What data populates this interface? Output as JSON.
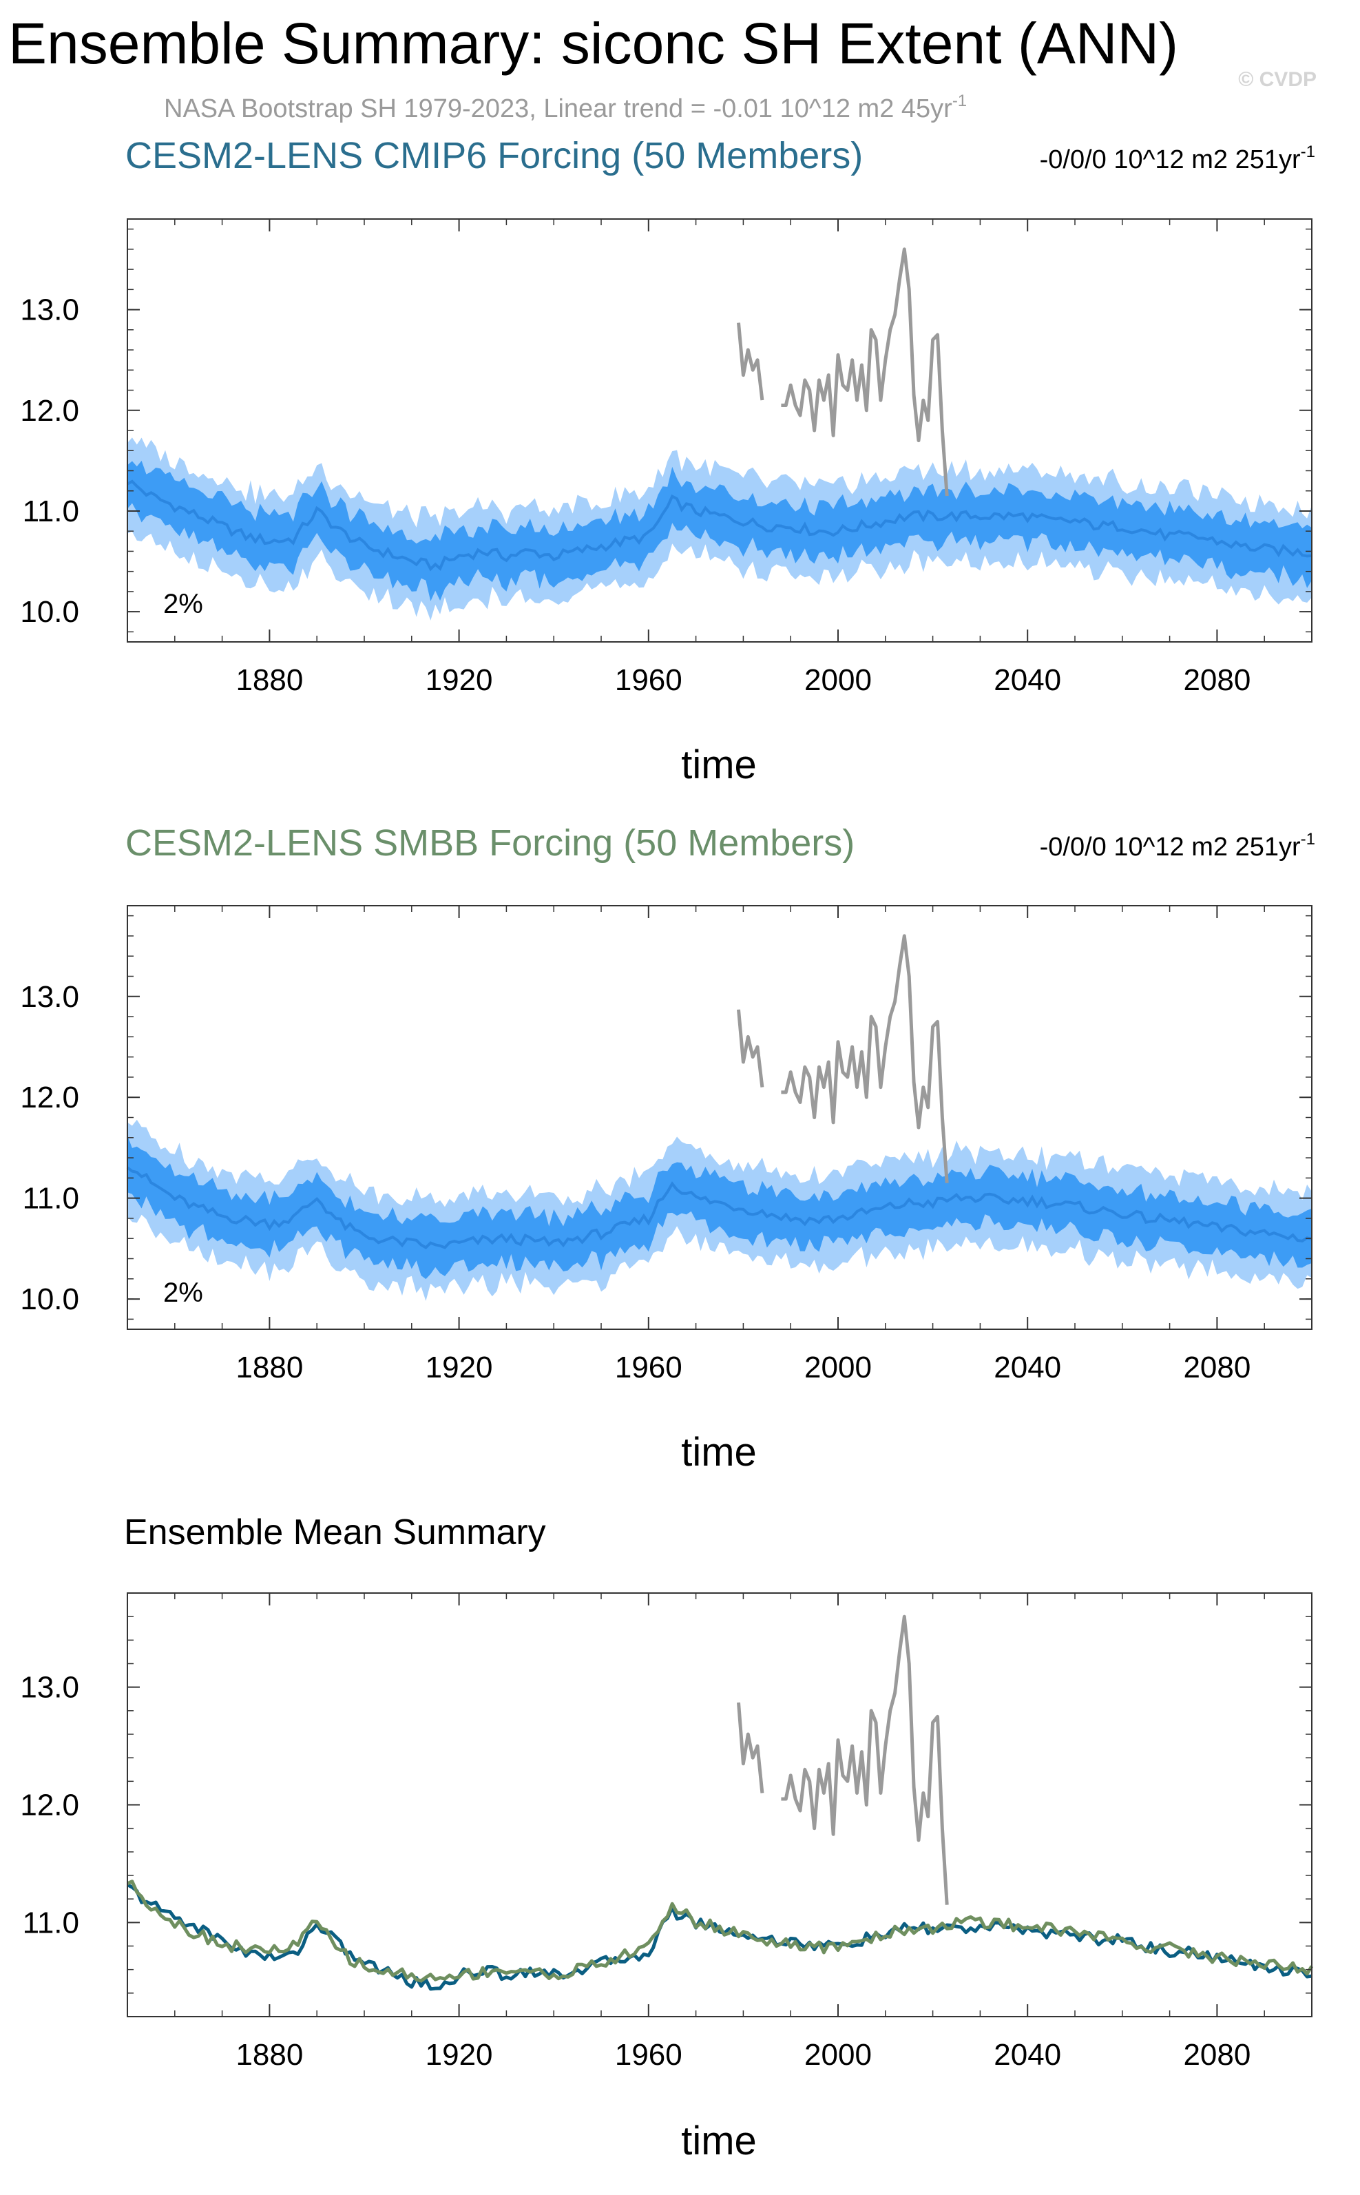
{
  "header": {
    "title": "Ensemble Summary: siconc SH Extent (ANN)",
    "obs_subtitle": "NASA Bootstrap SH 1979-2023, Linear trend = -0.01 10^12 m2 45yr",
    "obs_subtitle_sup": "-1",
    "watermark": "© CVDP"
  },
  "colors": {
    "band_outer": "#a6d0fb",
    "band_inner": "#3d9cf5",
    "mean_line": "#2b86e0",
    "obs_line": "#9a9a9a",
    "title_cmip6": "#2a6e8e",
    "title_smbb": "#6a8f6a",
    "mean_cmip6": "#0a5e82",
    "mean_smbb": "#6f8f5f"
  },
  "chart_data": [
    {
      "type": "area",
      "title": "CESM2-LENS CMIP6 Forcing (50 Members)",
      "trend_label": "-0/0/0 10^12 m2 251yr",
      "trend_sup": "-1",
      "xlabel": "time",
      "ylabel": "",
      "xlim": [
        1850,
        2100
      ],
      "ylim": [
        9.7,
        13.9
      ],
      "xticks": [
        1880,
        1920,
        1960,
        2000,
        2040,
        2080
      ],
      "yticks": [
        10.0,
        11.0,
        12.0,
        13.0
      ],
      "ytick_labels": [
        "10.0",
        "11.0",
        "12.0",
        "13.0"
      ],
      "xtick_labels": [
        "1880",
        "1920",
        "1960",
        "2000",
        "2040",
        "2080"
      ],
      "annotation": "2%",
      "ensemble_mean": {
        "name": "ensemble mean",
        "x": [
          1850,
          1855,
          1860,
          1865,
          1870,
          1875,
          1880,
          1885,
          1890,
          1895,
          1900,
          1905,
          1910,
          1915,
          1920,
          1925,
          1930,
          1935,
          1940,
          1945,
          1950,
          1955,
          1960,
          1965,
          1970,
          1975,
          1980,
          1985,
          1990,
          1995,
          2000,
          2005,
          2010,
          2015,
          2020,
          2025,
          2030,
          2035,
          2040,
          2045,
          2050,
          2055,
          2060,
          2065,
          2070,
          2075,
          2080,
          2085,
          2090,
          2095,
          2100
        ],
        "y": [
          11.3,
          11.15,
          11.05,
          10.95,
          10.85,
          10.75,
          10.7,
          10.72,
          11.0,
          10.8,
          10.65,
          10.58,
          10.5,
          10.45,
          10.55,
          10.6,
          10.55,
          10.6,
          10.55,
          10.6,
          10.65,
          10.7,
          10.75,
          11.1,
          11.0,
          10.95,
          10.9,
          10.85,
          10.85,
          10.8,
          10.8,
          10.85,
          10.9,
          10.95,
          10.95,
          10.95,
          10.95,
          10.95,
          10.95,
          10.9,
          10.9,
          10.85,
          10.85,
          10.8,
          10.75,
          10.75,
          10.7,
          10.65,
          10.62,
          10.6,
          10.58
        ]
      },
      "spread_outer_halfwidth": 0.45,
      "spread_inner_halfwidth": 0.25,
      "observations": {
        "name": "NASA Bootstrap SH",
        "x": [
          1979,
          1980,
          1981,
          1982,
          1983,
          1984,
          1985,
          1986,
          1987,
          1988,
          1989,
          1990,
          1991,
          1992,
          1993,
          1994,
          1995,
          1996,
          1997,
          1998,
          1999,
          2000,
          2001,
          2002,
          2003,
          2004,
          2005,
          2006,
          2007,
          2008,
          2009,
          2010,
          2011,
          2012,
          2013,
          2014,
          2015,
          2016,
          2017,
          2018,
          2019,
          2020,
          2021,
          2022,
          2023
        ],
        "y": [
          12.87,
          12.35,
          12.6,
          12.4,
          12.5,
          12.1,
          null,
          null,
          null,
          12.05,
          12.05,
          12.25,
          12.05,
          11.95,
          12.3,
          12.2,
          11.8,
          12.3,
          12.1,
          12.35,
          11.75,
          12.55,
          12.25,
          12.2,
          12.5,
          12.1,
          12.45,
          12.0,
          12.8,
          12.7,
          12.1,
          12.5,
          12.8,
          12.95,
          13.3,
          13.6,
          13.2,
          12.15,
          11.7,
          12.1,
          11.9,
          12.7,
          12.75,
          11.8,
          11.15
        ]
      }
    },
    {
      "type": "area",
      "title": "CESM2-LENS SMBB Forcing (50 Members)",
      "trend_label": "-0/0/0 10^12 m2 251yr",
      "trend_sup": "-1",
      "xlabel": "time",
      "ylabel": "",
      "xlim": [
        1850,
        2100
      ],
      "ylim": [
        9.7,
        13.9
      ],
      "xticks": [
        1880,
        1920,
        1960,
        2000,
        2040,
        2080
      ],
      "yticks": [
        10.0,
        11.0,
        12.0,
        13.0
      ],
      "ytick_labels": [
        "10.0",
        "11.0",
        "12.0",
        "13.0"
      ],
      "xtick_labels": [
        "1880",
        "1920",
        "1960",
        "2000",
        "2040",
        "2080"
      ],
      "annotation": "2%",
      "ensemble_mean": {
        "name": "ensemble mean",
        "x": [
          1850,
          1855,
          1860,
          1865,
          1870,
          1875,
          1880,
          1885,
          1890,
          1895,
          1900,
          1905,
          1910,
          1915,
          1920,
          1925,
          1930,
          1935,
          1940,
          1945,
          1950,
          1955,
          1960,
          1965,
          1970,
          1975,
          1980,
          1985,
          1990,
          1995,
          2000,
          2005,
          2010,
          2015,
          2020,
          2025,
          2030,
          2035,
          2040,
          2045,
          2050,
          2055,
          2060,
          2065,
          2070,
          2075,
          2080,
          2085,
          2090,
          2095,
          2100
        ],
        "y": [
          11.35,
          11.15,
          11.0,
          10.9,
          10.82,
          10.78,
          10.75,
          10.8,
          11.0,
          10.75,
          10.62,
          10.58,
          10.55,
          10.52,
          10.55,
          10.58,
          10.6,
          10.58,
          10.55,
          10.6,
          10.65,
          10.72,
          10.8,
          11.15,
          11.0,
          10.95,
          10.9,
          10.85,
          10.8,
          10.78,
          10.8,
          10.85,
          10.9,
          10.95,
          10.95,
          11.0,
          11.0,
          10.98,
          10.98,
          10.95,
          10.92,
          10.88,
          10.85,
          10.8,
          10.78,
          10.75,
          10.7,
          10.68,
          10.65,
          10.62,
          10.6
        ]
      },
      "spread_outer_halfwidth": 0.45,
      "spread_inner_halfwidth": 0.25,
      "observations": {
        "name": "NASA Bootstrap SH",
        "x": [
          1979,
          1980,
          1981,
          1982,
          1983,
          1984,
          1985,
          1986,
          1987,
          1988,
          1989,
          1990,
          1991,
          1992,
          1993,
          1994,
          1995,
          1996,
          1997,
          1998,
          1999,
          2000,
          2001,
          2002,
          2003,
          2004,
          2005,
          2006,
          2007,
          2008,
          2009,
          2010,
          2011,
          2012,
          2013,
          2014,
          2015,
          2016,
          2017,
          2018,
          2019,
          2020,
          2021,
          2022,
          2023
        ],
        "y": [
          12.87,
          12.35,
          12.6,
          12.4,
          12.5,
          12.1,
          null,
          null,
          null,
          12.05,
          12.05,
          12.25,
          12.05,
          11.95,
          12.3,
          12.2,
          11.8,
          12.3,
          12.1,
          12.35,
          11.75,
          12.55,
          12.25,
          12.2,
          12.5,
          12.1,
          12.45,
          12.0,
          12.8,
          12.7,
          12.1,
          12.5,
          12.8,
          12.95,
          13.3,
          13.6,
          13.2,
          12.15,
          11.7,
          12.1,
          11.9,
          12.7,
          12.75,
          11.8,
          11.15
        ]
      }
    },
    {
      "type": "line",
      "title": "Ensemble Mean Summary",
      "xlabel": "time",
      "ylabel": "",
      "xlim": [
        1850,
        2100
      ],
      "ylim": [
        10.2,
        13.8
      ],
      "xticks": [
        1880,
        1920,
        1960,
        2000,
        2040,
        2080
      ],
      "yticks": [
        11.0,
        12.0,
        13.0
      ],
      "ytick_labels": [
        "11.0",
        "12.0",
        "13.0"
      ],
      "xtick_labels": [
        "1880",
        "1920",
        "1960",
        "2000",
        "2040",
        "2080"
      ],
      "series": [
        {
          "name": "CESM2-LENS CMIP6 Forcing",
          "x": [
            1850,
            1855,
            1860,
            1865,
            1870,
            1875,
            1880,
            1885,
            1890,
            1895,
            1900,
            1905,
            1910,
            1915,
            1920,
            1925,
            1930,
            1935,
            1940,
            1945,
            1950,
            1955,
            1960,
            1965,
            1970,
            1975,
            1980,
            1985,
            1990,
            1995,
            2000,
            2005,
            2010,
            2015,
            2020,
            2025,
            2030,
            2035,
            2040,
            2045,
            2050,
            2055,
            2060,
            2065,
            2070,
            2075,
            2080,
            2085,
            2090,
            2095,
            2100
          ],
          "values": [
            11.3,
            11.15,
            11.05,
            10.95,
            10.85,
            10.75,
            10.7,
            10.72,
            11.0,
            10.8,
            10.65,
            10.58,
            10.5,
            10.45,
            10.55,
            10.6,
            10.55,
            10.6,
            10.55,
            10.6,
            10.65,
            10.7,
            10.75,
            11.1,
            11.0,
            10.95,
            10.9,
            10.85,
            10.85,
            10.8,
            10.8,
            10.85,
            10.9,
            10.95,
            10.95,
            10.95,
            10.95,
            10.95,
            10.95,
            10.9,
            10.9,
            10.85,
            10.85,
            10.8,
            10.75,
            10.75,
            10.7,
            10.65,
            10.62,
            10.6,
            10.58
          ]
        },
        {
          "name": "CESM2-LENS SMBB Forcing",
          "x": [
            1850,
            1855,
            1860,
            1865,
            1870,
            1875,
            1880,
            1885,
            1890,
            1895,
            1900,
            1905,
            1910,
            1915,
            1920,
            1925,
            1930,
            1935,
            1940,
            1945,
            1950,
            1955,
            1960,
            1965,
            1970,
            1975,
            1980,
            1985,
            1990,
            1995,
            2000,
            2005,
            2010,
            2015,
            2020,
            2025,
            2030,
            2035,
            2040,
            2045,
            2050,
            2055,
            2060,
            2065,
            2070,
            2075,
            2080,
            2085,
            2090,
            2095,
            2100
          ],
          "values": [
            11.35,
            11.15,
            11.0,
            10.9,
            10.82,
            10.78,
            10.75,
            10.8,
            11.0,
            10.75,
            10.62,
            10.58,
            10.55,
            10.52,
            10.55,
            10.58,
            10.6,
            10.58,
            10.55,
            10.6,
            10.65,
            10.72,
            10.8,
            11.15,
            11.0,
            10.95,
            10.9,
            10.85,
            10.8,
            10.78,
            10.8,
            10.85,
            10.9,
            10.95,
            10.95,
            11.0,
            11.0,
            10.98,
            10.98,
            10.95,
            10.92,
            10.88,
            10.85,
            10.8,
            10.78,
            10.75,
            10.7,
            10.68,
            10.65,
            10.62,
            10.6
          ]
        },
        {
          "name": "NASA Bootstrap SH",
          "x": [
            1979,
            1980,
            1981,
            1982,
            1983,
            1984,
            1985,
            1986,
            1987,
            1988,
            1989,
            1990,
            1991,
            1992,
            1993,
            1994,
            1995,
            1996,
            1997,
            1998,
            1999,
            2000,
            2001,
            2002,
            2003,
            2004,
            2005,
            2006,
            2007,
            2008,
            2009,
            2010,
            2011,
            2012,
            2013,
            2014,
            2015,
            2016,
            2017,
            2018,
            2019,
            2020,
            2021,
            2022,
            2023
          ],
          "values": [
            12.87,
            12.35,
            12.6,
            12.4,
            12.5,
            12.1,
            null,
            null,
            null,
            12.05,
            12.05,
            12.25,
            12.05,
            11.95,
            12.3,
            12.2,
            11.8,
            12.3,
            12.1,
            12.35,
            11.75,
            12.55,
            12.25,
            12.2,
            12.5,
            12.1,
            12.45,
            12.0,
            12.8,
            12.7,
            12.1,
            12.5,
            12.8,
            12.95,
            13.3,
            13.6,
            13.2,
            12.15,
            11.7,
            12.1,
            11.9,
            12.7,
            12.75,
            11.8,
            11.15
          ]
        }
      ]
    }
  ]
}
